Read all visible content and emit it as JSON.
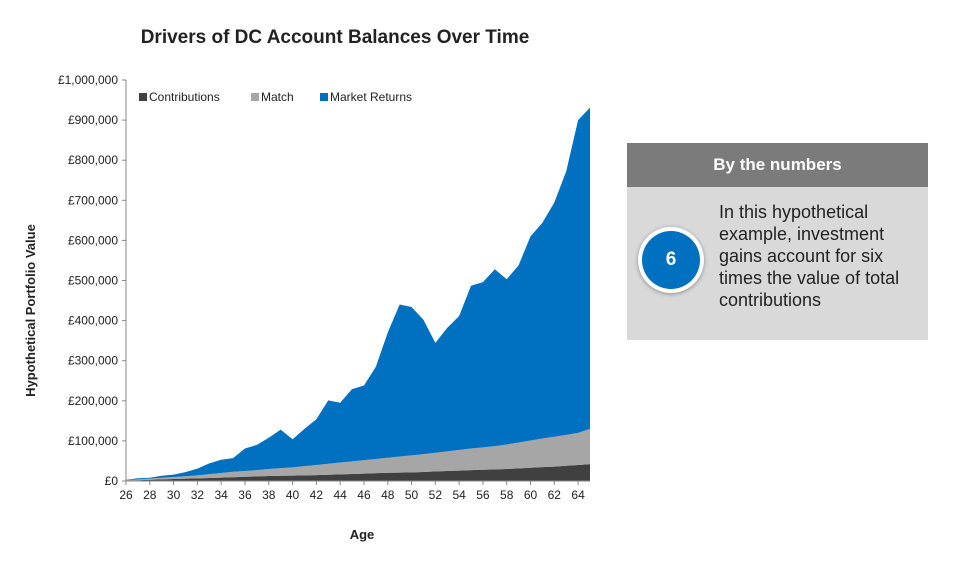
{
  "chart_data": {
    "type": "area",
    "stacked": true,
    "title": "Drivers of DC Account Balances Over Time",
    "xlabel": "Age",
    "ylabel": "Hypothetical Portfolio Value",
    "xlim": [
      26,
      65
    ],
    "ylim": [
      0,
      1000000
    ],
    "x_ticks": [
      "26",
      "28",
      "30",
      "32",
      "34",
      "36",
      "38",
      "40",
      "42",
      "44",
      "46",
      "48",
      "50",
      "52",
      "54",
      "56",
      "58",
      "60",
      "62",
      "64"
    ],
    "y_ticks": [
      "£0",
      "£100,000",
      "£200,000",
      "£300,000",
      "£400,000",
      "£500,000",
      "£600,000",
      "£700,000",
      "£800,000",
      "£900,000",
      "£1,000,000"
    ],
    "legend_position": "top-left",
    "x": [
      26,
      27,
      28,
      29,
      30,
      31,
      32,
      33,
      34,
      35,
      36,
      37,
      38,
      39,
      40,
      41,
      42,
      43,
      44,
      45,
      46,
      47,
      48,
      49,
      50,
      51,
      52,
      53,
      54,
      55,
      56,
      57,
      58,
      59,
      60,
      61,
      62,
      63,
      64,
      65
    ],
    "series": [
      {
        "name": "Contributions",
        "color": "#404040",
        "values": [
          1000,
          2000,
          3000,
          4000,
          5000,
          6000,
          6500,
          7500,
          8500,
          9500,
          10500,
          11500,
          12500,
          13000,
          13500,
          14000,
          14500,
          15500,
          16500,
          17500,
          18500,
          19500,
          20500,
          21000,
          21500,
          22500,
          24000,
          25000,
          26000,
          27000,
          28000,
          29000,
          30000,
          31500,
          33000,
          34500,
          36000,
          38000,
          40000,
          42000
        ]
      },
      {
        "name": "Match",
        "color": "#a6a6a6",
        "values": [
          1500,
          2000,
          3000,
          4000,
          5000,
          6000,
          7500,
          9500,
          11500,
          13500,
          14500,
          15500,
          17500,
          19000,
          20500,
          23000,
          25500,
          27500,
          29500,
          31500,
          33500,
          35500,
          37500,
          40000,
          42500,
          44500,
          46500,
          49000,
          51500,
          54000,
          56000,
          58000,
          61000,
          64500,
          68000,
          71500,
          74500,
          77000,
          80000,
          88000
        ]
      },
      {
        "name": "Market Returns",
        "color": "#0070c0",
        "values": [
          500,
          3000,
          2000,
          5000,
          6000,
          10000,
          17000,
          27000,
          33000,
          34000,
          56000,
          63000,
          78000,
          96000,
          70000,
          93000,
          114000,
          158000,
          149000,
          180000,
          186000,
          230000,
          312000,
          379000,
          370000,
          335000,
          274000,
          308000,
          334000,
          406000,
          412000,
          441000,
          412000,
          442000,
          509000,
          538000,
          584000,
          657000,
          780000,
          801000
        ]
      }
    ]
  },
  "info_panel": {
    "header": "By the numbers",
    "badge_value": "6",
    "text": "In this hypothetical example, investment gains account for six times  the value of total contributions"
  }
}
